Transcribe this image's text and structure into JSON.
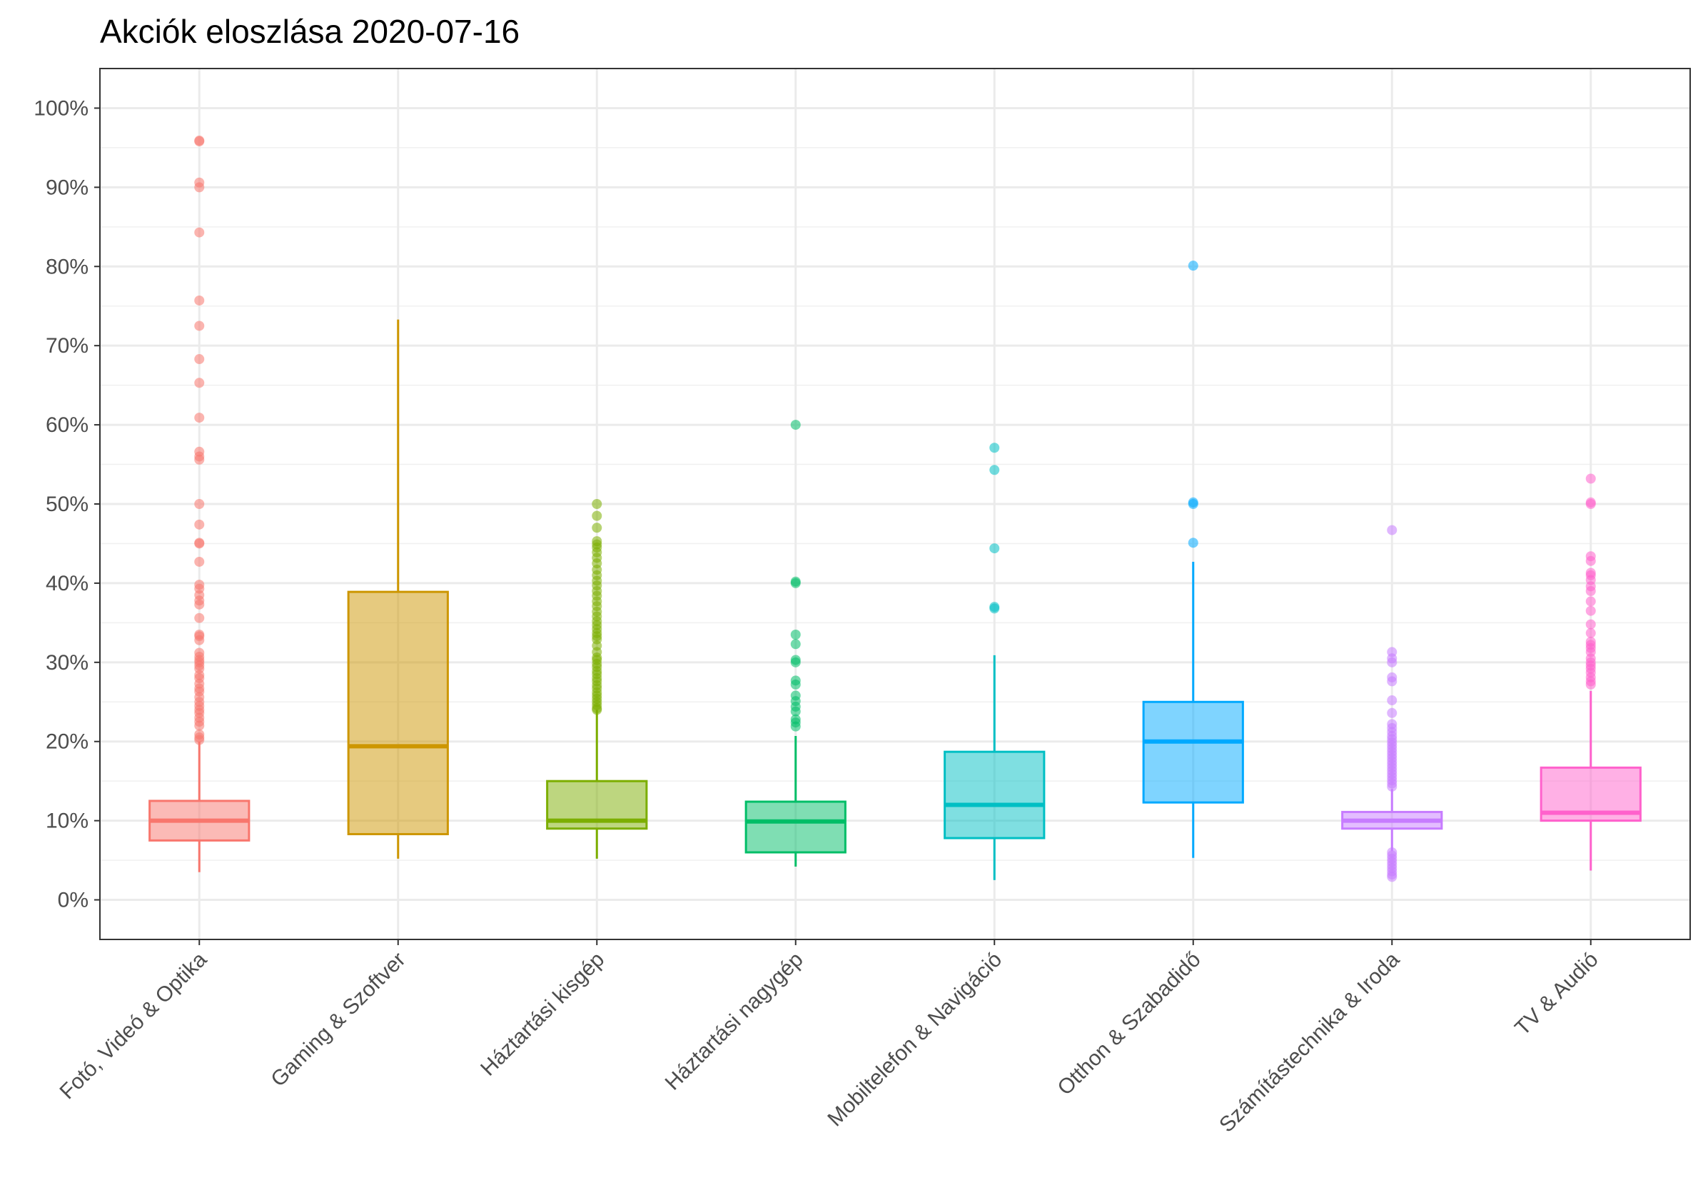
{
  "chart_data": {
    "type": "boxplot",
    "title": "Akciók eloszlása 2020-07-16",
    "xlabel": "",
    "ylabel": "",
    "ylim": [
      -0.05,
      1.05
    ],
    "y_ticks": [
      0,
      0.1,
      0.2,
      0.3,
      0.4,
      0.5,
      0.6,
      0.7,
      0.8,
      0.9,
      1.0
    ],
    "y_tick_labels": [
      "0%",
      "10%",
      "20%",
      "30%",
      "40%",
      "50%",
      "60%",
      "70%",
      "80%",
      "90%",
      "100%"
    ],
    "grid": true,
    "legend": "none",
    "categories": [
      {
        "name": "Fotó, Videó & Optika",
        "color": "#F8766D",
        "whisker_low": 0.035,
        "q1": 0.075,
        "median": 0.1,
        "q3": 0.125,
        "whisker_high": 0.2,
        "outliers": [
          0.958,
          0.959,
          0.906,
          0.9,
          0.843,
          0.757,
          0.725,
          0.683,
          0.653,
          0.609,
          0.566,
          0.56,
          0.556,
          0.5,
          0.474,
          0.451,
          0.45,
          0.427,
          0.398,
          0.393,
          0.385,
          0.378,
          0.373,
          0.356,
          0.335,
          0.333,
          0.328,
          0.312,
          0.307,
          0.303,
          0.3,
          0.296,
          0.292,
          0.284,
          0.28,
          0.273,
          0.267,
          0.263,
          0.256,
          0.25,
          0.245,
          0.24,
          0.236,
          0.23,
          0.225,
          0.22,
          0.209,
          0.205,
          0.202
        ]
      },
      {
        "name": "Gaming & Szoftver",
        "color": "#CD9600",
        "whisker_low": 0.052,
        "q1": 0.083,
        "median": 0.194,
        "q3": 0.389,
        "whisker_high": 0.733,
        "outliers": []
      },
      {
        "name": "Háztartási kisgép",
        "color": "#7CAE00",
        "whisker_low": 0.052,
        "q1": 0.09,
        "median": 0.1,
        "q3": 0.15,
        "whisker_high": 0.24,
        "outliers": [
          0.5,
          0.485,
          0.47,
          0.453,
          0.449,
          0.445,
          0.439,
          0.432,
          0.425,
          0.417,
          0.41,
          0.403,
          0.397,
          0.39,
          0.384,
          0.377,
          0.371,
          0.364,
          0.358,
          0.352,
          0.347,
          0.342,
          0.337,
          0.333,
          0.329,
          0.321,
          0.313,
          0.306,
          0.303,
          0.298,
          0.294,
          0.289,
          0.285,
          0.28,
          0.276,
          0.271,
          0.267,
          0.262,
          0.258,
          0.254,
          0.25,
          0.246,
          0.242,
          0.24
        ]
      },
      {
        "name": "Háztartási nagygép",
        "color": "#00BE67",
        "whisker_low": 0.042,
        "q1": 0.06,
        "median": 0.099,
        "q3": 0.124,
        "whisker_high": 0.207,
        "outliers": [
          0.6,
          0.402,
          0.4,
          0.335,
          0.323,
          0.303,
          0.3,
          0.277,
          0.272,
          0.258,
          0.251,
          0.244,
          0.238,
          0.228,
          0.224,
          0.219
        ]
      },
      {
        "name": "Mobiltelefon & Navigáció",
        "color": "#00BFC4",
        "whisker_low": 0.025,
        "q1": 0.078,
        "median": 0.12,
        "q3": 0.187,
        "whisker_high": 0.309,
        "outliers": [
          0.571,
          0.543,
          0.444,
          0.37,
          0.368
        ]
      },
      {
        "name": "Otthon & Szabadidő",
        "color": "#00A9FF",
        "whisker_low": 0.053,
        "q1": 0.123,
        "median": 0.2,
        "q3": 0.25,
        "whisker_high": 0.427,
        "outliers": [
          0.801,
          0.502,
          0.5,
          0.451
        ]
      },
      {
        "name": "Számítástechnika & Iroda",
        "color": "#C77CFF",
        "whisker_low": 0.062,
        "q1": 0.09,
        "median": 0.1,
        "q3": 0.111,
        "whisker_high": 0.14,
        "outliers": [
          0.467,
          0.313,
          0.305,
          0.3,
          0.281,
          0.276,
          0.252,
          0.236,
          0.222,
          0.217,
          0.212,
          0.207,
          0.203,
          0.199,
          0.195,
          0.191,
          0.187,
          0.183,
          0.179,
          0.175,
          0.171,
          0.167,
          0.163,
          0.159,
          0.155,
          0.151,
          0.147,
          0.143,
          0.06,
          0.056,
          0.052,
          0.048,
          0.044,
          0.04,
          0.036,
          0.032,
          0.029
        ]
      },
      {
        "name": "TV & Audió",
        "color": "#FF61CC",
        "whisker_low": 0.037,
        "q1": 0.1,
        "median": 0.11,
        "q3": 0.167,
        "whisker_high": 0.264,
        "outliers": [
          0.532,
          0.502,
          0.5,
          0.434,
          0.428,
          0.413,
          0.41,
          0.404,
          0.396,
          0.39,
          0.377,
          0.365,
          0.348,
          0.337,
          0.326,
          0.322,
          0.318,
          0.313,
          0.305,
          0.3,
          0.296,
          0.292,
          0.287,
          0.281,
          0.276,
          0.272
        ]
      }
    ]
  }
}
